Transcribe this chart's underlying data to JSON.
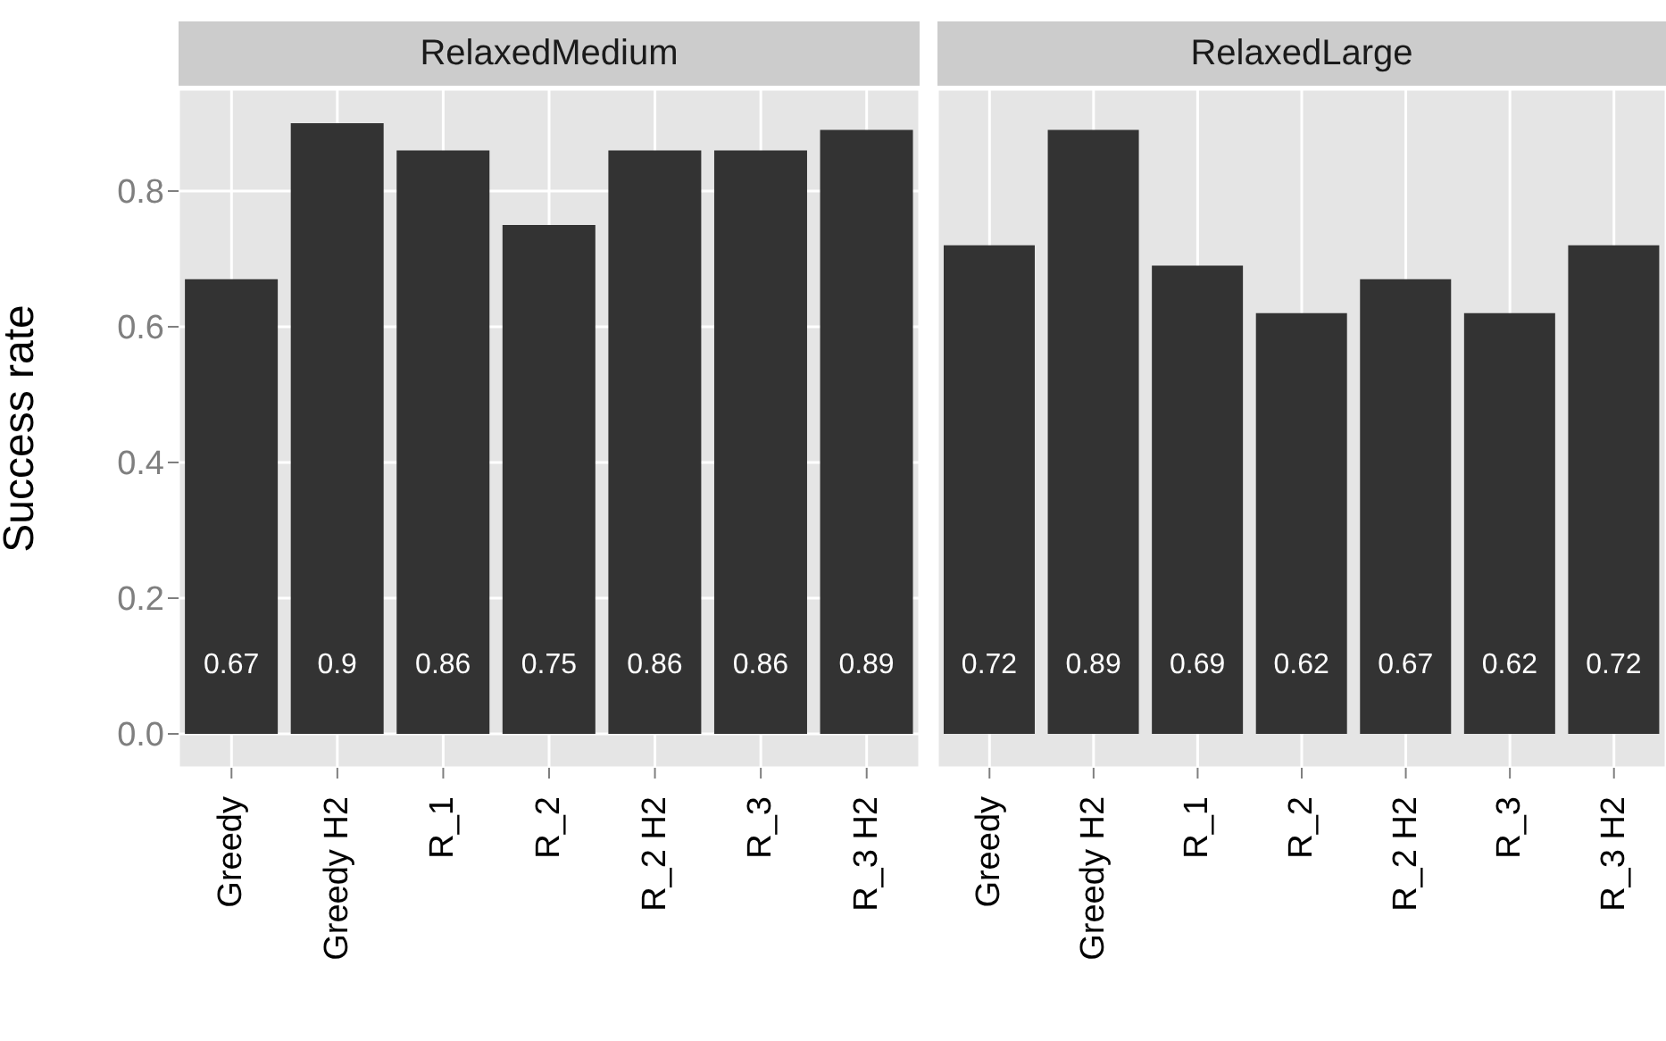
{
  "chart_data": [
    {
      "type": "bar",
      "title": "RelaxedMedium",
      "ylabel": "Success rate",
      "categories": [
        "Greedy",
        "Greedy  H2",
        "R_1",
        "R_2",
        "R_2 H2",
        "R_3",
        "R_3 H2"
      ],
      "values": [
        0.67,
        0.9,
        0.86,
        0.75,
        0.86,
        0.86,
        0.89
      ],
      "color": "#333333",
      "ylim": [
        -0.05,
        0.95
      ],
      "yticks": [
        {
          "value": 0,
          "label": "0.0"
        },
        0.2,
        0.4,
        0.6,
        0.8
      ],
      "grid": true,
      "data_labels": true
    },
    {
      "type": "bar",
      "title": "RelaxedLarge",
      "categories": [
        "Greedy",
        "Greedy  H2",
        "R_1",
        "R_2",
        "R_2 H2",
        "R_3",
        "R_3 H2"
      ],
      "values": [
        0.72,
        0.89,
        0.69,
        0.62,
        0.67,
        0.62,
        0.72
      ],
      "color": "#333333",
      "ylim": [
        -0.05,
        0.95
      ],
      "yticks": [
        0,
        0.2,
        0.4,
        0.6,
        0.8
      ],
      "grid": true,
      "data_labels": true,
      "tick_labels": "x"
    }
  ]
}
